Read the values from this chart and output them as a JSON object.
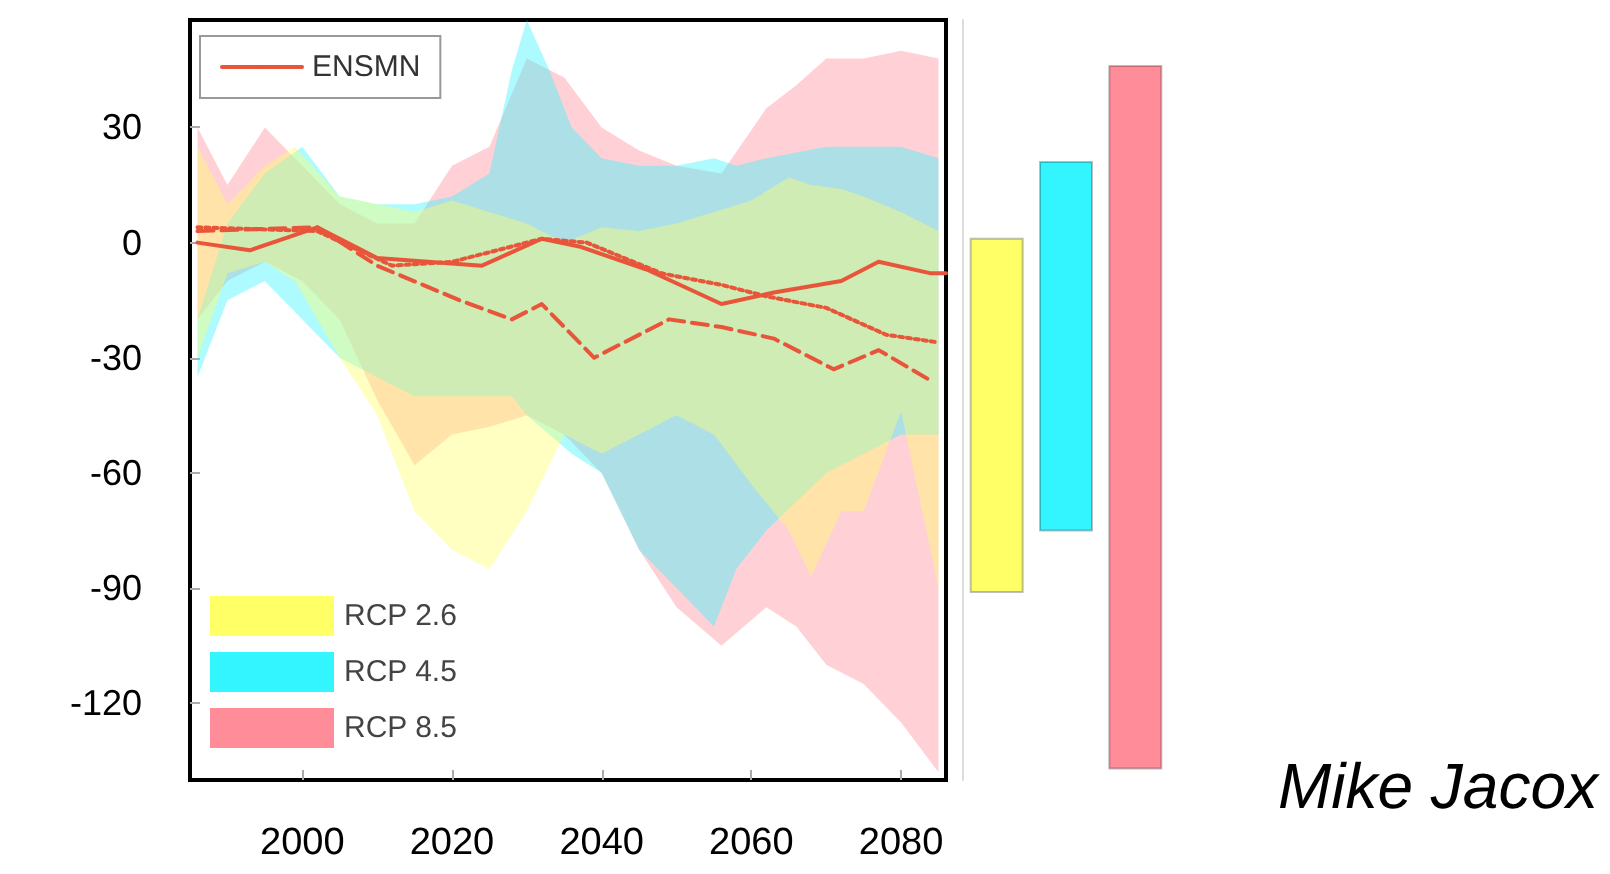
{
  "chart_data": [
    {
      "type": "line",
      "xlim": [
        1985,
        2086
      ],
      "ylim": [
        -140,
        58
      ],
      "xticks": [
        2000,
        2020,
        2040,
        2060,
        2080
      ],
      "yticks": [
        -120,
        -90,
        -60,
        -30,
        0,
        30
      ],
      "legend": "left",
      "marker": "none",
      "annotations": [
        "Mike Jacox"
      ],
      "series": [
        {
          "name": "RCP 8.5",
          "type": "area",
          "color": "#ff8c99",
          "x": [
            1986,
            1990,
            1995,
            2000,
            2005,
            2010,
            2015,
            2020,
            2025,
            2030,
            2035,
            2040,
            2045,
            2050,
            2056,
            2062,
            2066,
            2070,
            2075,
            2080,
            2085
          ],
          "values": [
            null,
            null,
            null,
            null,
            null,
            null,
            null,
            null,
            null,
            null,
            null,
            null,
            null,
            null,
            null,
            null,
            null,
            null,
            null,
            null,
            null
          ],
          "lower": [
            -20,
            -10,
            -5,
            -10,
            -20,
            -41,
            -58,
            -50,
            -48,
            -45,
            -50,
            -60,
            -80,
            -95,
            -105,
            -95,
            -100,
            -110,
            -115,
            -125,
            -138
          ],
          "upper": [
            30,
            15,
            30,
            20,
            10,
            5,
            5,
            20,
            25,
            48,
            43,
            30,
            24,
            20,
            18,
            35,
            41,
            48,
            48,
            50,
            48
          ]
        },
        {
          "name": "RCP 4.5",
          "type": "area",
          "color": "#33f5ff",
          "x": [
            1986,
            1990,
            1995,
            2000,
            2005,
            2010,
            2015,
            2020,
            2025,
            2028,
            2030,
            2033,
            2036,
            2040,
            2045,
            2050,
            2055,
            2058,
            2062,
            2070,
            2080,
            2085
          ],
          "values": [
            null,
            null,
            null,
            null,
            null,
            null,
            null,
            null,
            null,
            null,
            null,
            null,
            null,
            null,
            null,
            null,
            null,
            null,
            null,
            null,
            null,
            null
          ],
          "lower": [
            -35,
            -15,
            -10,
            -20,
            -30,
            -35,
            -40,
            -40,
            -40,
            -40,
            -45,
            -50,
            -55,
            -60,
            -80,
            -90,
            -100,
            -85,
            -75,
            -60,
            -50,
            -50
          ],
          "upper": [
            -20,
            5,
            18,
            25,
            12,
            10,
            10,
            12,
            18,
            45,
            58,
            45,
            30,
            22,
            20,
            20,
            22,
            20,
            22,
            25,
            25,
            22
          ]
        },
        {
          "name": "RCP 2.6",
          "type": "area",
          "color": "#ffff66",
          "x": [
            1986,
            1990,
            1995,
            1999,
            2005,
            2010,
            2015,
            2020,
            2025,
            2030,
            2035,
            2040,
            2045,
            2050,
            2055,
            2060,
            2065,
            2068,
            2072,
            2075,
            2080,
            2085
          ],
          "values": [
            null,
            null,
            null,
            null,
            null,
            null,
            null,
            null,
            null,
            null,
            null,
            null,
            null,
            null,
            null,
            null,
            null,
            null,
            null,
            null,
            null,
            null
          ],
          "lower": [
            -30,
            -8,
            -5,
            -10,
            -30,
            -45,
            -70,
            -80,
            -85,
            -70,
            -50,
            -55,
            -50,
            -45,
            -50,
            -63,
            -75,
            -87,
            -70,
            -70,
            -44,
            -90
          ],
          "upper": [
            25,
            10,
            20,
            25,
            12,
            10,
            8,
            11,
            8,
            5,
            0,
            4,
            3,
            5,
            8,
            11,
            17,
            15,
            14,
            12,
            8,
            3
          ]
        },
        {
          "name": "ENSMN",
          "type": "line",
          "color": "#e8553a",
          "line_style": "solid",
          "x": [
            1986,
            1993,
            2002,
            2010,
            2024,
            2032,
            2037,
            2046,
            2056,
            2063,
            2072,
            2077,
            2084,
            2086
          ],
          "values": [
            0,
            -2,
            4,
            -4,
            -6,
            1,
            -1,
            -7,
            -16,
            -13,
            -10,
            -5,
            -8,
            -8
          ]
        },
        {
          "type": "line",
          "color": "#e8553a",
          "line_style": "dotted",
          "x": [
            1986,
            2002,
            2012,
            2020,
            2032,
            2038,
            2048,
            2056,
            2062,
            2070,
            2078,
            2085
          ],
          "values": [
            4,
            3,
            -6,
            -5,
            1,
            0,
            -8,
            -11,
            -14,
            -17,
            -24,
            -26
          ]
        },
        {
          "type": "line",
          "color": "#e8553a",
          "line_style": "dashed",
          "x": [
            1986,
            2002,
            2010,
            2021,
            2028,
            2032,
            2039,
            2049,
            2056,
            2063,
            2071,
            2077,
            2084
          ],
          "values": [
            3,
            4,
            -6,
            -15,
            -20,
            -16,
            -30,
            -20,
            -22,
            -25,
            -33,
            -28,
            -36
          ]
        }
      ]
    },
    {
      "type": "bar",
      "categories": [
        null,
        null,
        null
      ],
      "base": [
        -91,
        -75,
        -137
      ],
      "values": [
        92,
        96,
        183
      ],
      "colors": [
        "#ffff66",
        "#33f5ff",
        "#ff8c99"
      ],
      "ylim": [
        -140,
        58
      ],
      "tick_labels": false
    }
  ]
}
